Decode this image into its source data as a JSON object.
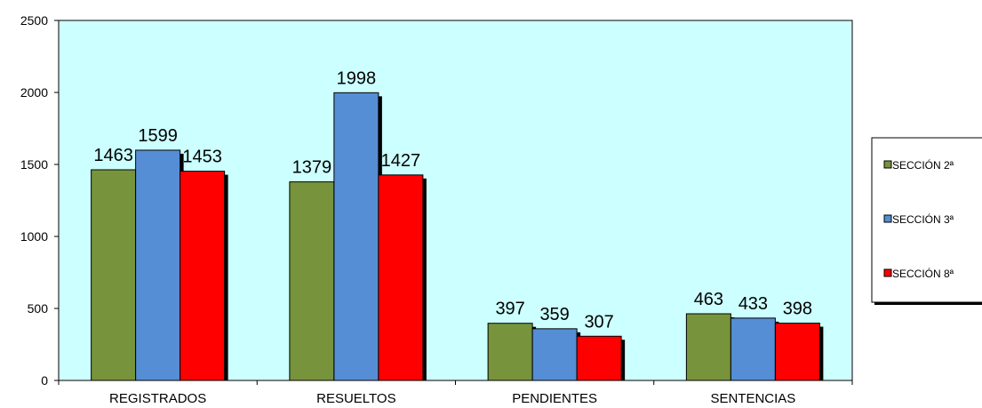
{
  "chart_data": {
    "type": "bar",
    "title": "",
    "xlabel": "",
    "ylabel": "",
    "ylim": [
      0,
      2500
    ],
    "yticks": [
      0,
      500,
      1000,
      1500,
      2000,
      2500
    ],
    "grid": false,
    "legend_position": "right",
    "plot_background": "#CCFFFF",
    "categories": [
      "REGISTRADOS",
      "RESUELTOS",
      "PENDIENTES",
      "SENTENCIAS"
    ],
    "series": [
      {
        "name": "SECCIÓN 2ª",
        "color": "#77933C",
        "values": [
          1463,
          1379,
          397,
          463
        ]
      },
      {
        "name": "SECCIÓN 3ª",
        "color": "#558ED5",
        "values": [
          1599,
          1998,
          359,
          433
        ]
      },
      {
        "name": "SECCIÓN 8ª",
        "color": "#FF0000",
        "values": [
          1453,
          1427,
          307,
          398
        ]
      }
    ]
  }
}
